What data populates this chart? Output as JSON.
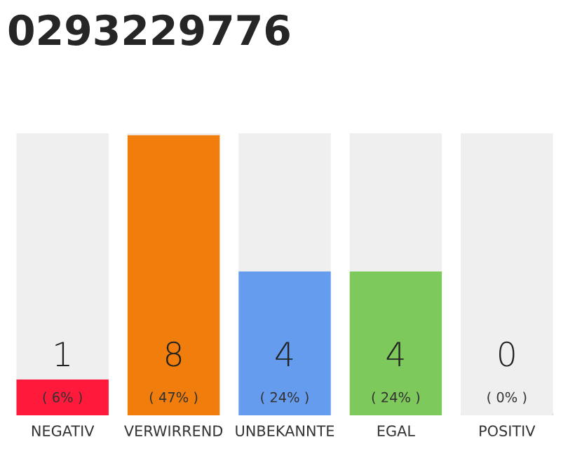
{
  "chart_data": {
    "type": "bar",
    "title": "0293229776",
    "categories": [
      "NEGATIV",
      "VERWIRREND",
      "UNBEKANNTE",
      "EGAL",
      "POSITIV"
    ],
    "stacked": true,
    "series": [
      {
        "colors": [
          "#ff1a3c",
          "#f07d0c",
          "#669cee",
          "#7ec95c",
          "#22aa44"
        ],
        "values": [
          6,
          47,
          24,
          24,
          0
        ],
        "value_labels": [
          "( 6% )",
          "( 47% )",
          "( 24% )",
          "( 24% )",
          "( 0% )"
        ]
      },
      {
        "color": "#efefef",
        "values": [
          41,
          0,
          23,
          23,
          47
        ]
      }
    ],
    "annotations": [
      "1",
      "8",
      "4",
      "4",
      "0"
    ]
  }
}
